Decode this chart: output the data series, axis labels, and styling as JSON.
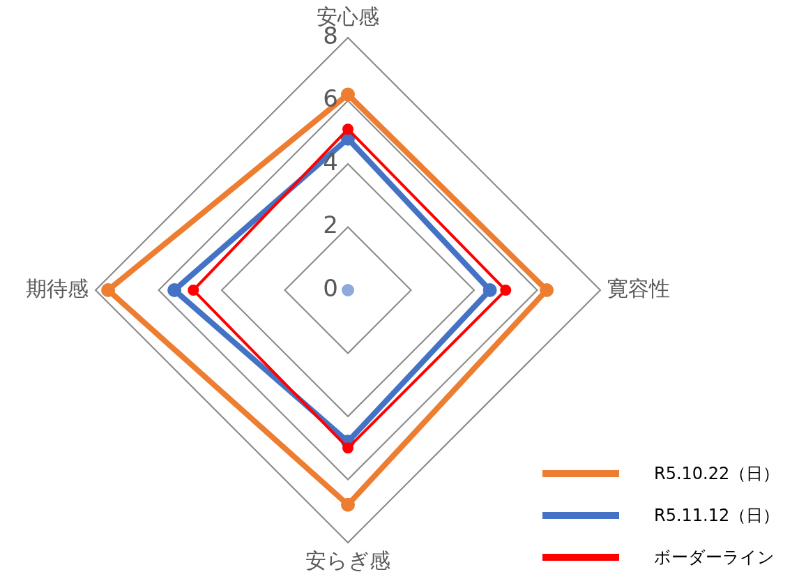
{
  "chart_data": {
    "type": "radar",
    "categories": [
      "安心感",
      "寛容性",
      "安らぎ感",
      "期待感"
    ],
    "series": [
      {
        "name": "R5.10.22（日）",
        "color": "#ed7d31",
        "values": [
          6.2,
          6.3,
          6.8,
          7.6
        ]
      },
      {
        "name": "R5.11.12（日）",
        "color": "#4472c4",
        "values": [
          4.8,
          4.5,
          4.8,
          5.5
        ]
      },
      {
        "name": "ボーダーライン",
        "color": "#ff0000",
        "values": [
          5.1,
          5,
          5,
          4.9
        ]
      }
    ],
    "ylim": [
      0,
      8
    ],
    "yticks": [
      0,
      2,
      4,
      6,
      8
    ],
    "grid": true,
    "legend": "bottom right",
    "marker": "circle"
  }
}
